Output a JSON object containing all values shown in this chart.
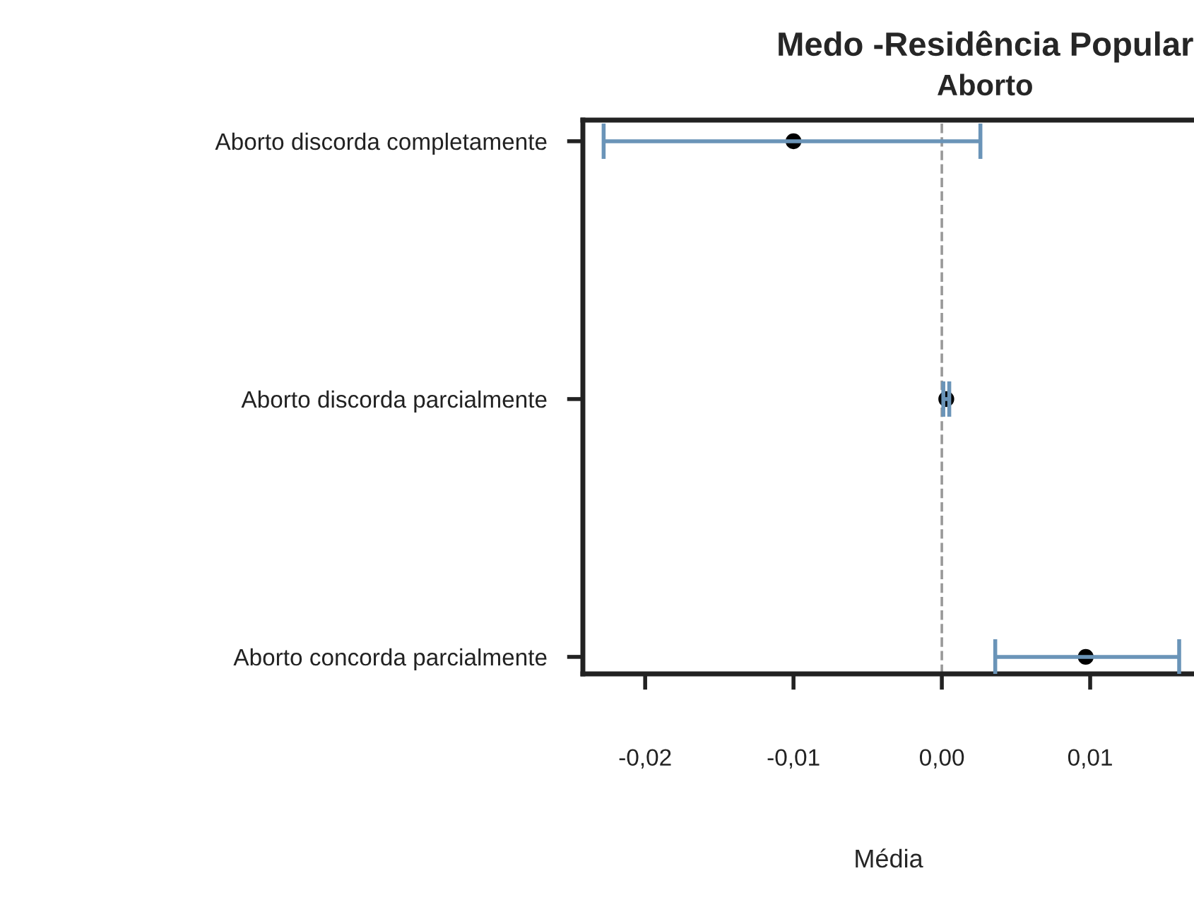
{
  "chart_data": {
    "type": "scatter",
    "orientation": "horizontal",
    "title": "Medo -Residência Popular",
    "subtitle": "Aborto",
    "xlabel": "Média",
    "categories": [
      "Aborto discorda completamente",
      "Aborto discorda parcialmente",
      "Aborto concorda parcialmente"
    ],
    "color": "#000000",
    "values": [
      -0.01,
      0.0003,
      0.0097
    ],
    "errors": [
      [
        -0.0228,
        0.0026
      ],
      [
        0.0001,
        0.0005
      ],
      [
        0.0036,
        0.016
      ]
    ],
    "xlim": [
      -0.0242,
      0.017
    ],
    "xticks": [
      {
        "value": -0.02,
        "label": "-0,02"
      },
      {
        "value": -0.01,
        "label": "-0,01"
      },
      {
        "value": 0.0,
        "label": "0,00"
      },
      {
        "value": 0.01,
        "label": "0,01"
      }
    ],
    "ref_lines": [
      {
        "axis": "x",
        "value": 0,
        "color": "#999999",
        "line_style": "dashed"
      }
    ],
    "marker": "circle",
    "grid": false,
    "legend": false
  }
}
